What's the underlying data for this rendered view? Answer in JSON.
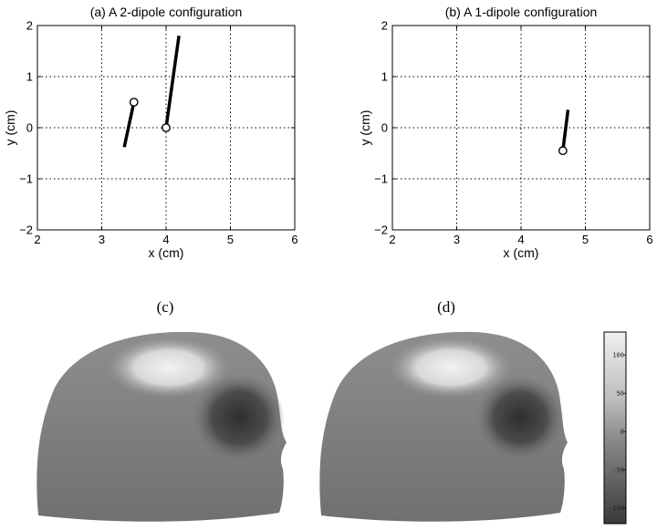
{
  "chart_data": [
    {
      "type": "scatter",
      "title": "(a) A 2-dipole configuration",
      "xlabel": "x (cm)",
      "ylabel": "y (cm)",
      "xlim": [
        2,
        6
      ],
      "ylim": [
        -2,
        2
      ],
      "xticks": [
        "2",
        "3",
        "4",
        "5",
        "6"
      ],
      "yticks": [
        "2",
        "1",
        "0",
        "−1",
        "−2"
      ],
      "grid": "dotted",
      "dipoles": [
        {
          "origin": [
            3.5,
            0.5
          ],
          "tip": [
            3.35,
            -0.38
          ]
        },
        {
          "origin": [
            4.0,
            0.0
          ],
          "tip": [
            4.2,
            1.8
          ]
        }
      ]
    },
    {
      "type": "scatter",
      "title": "(b) A 1-dipole configuration",
      "xlabel": "x (cm)",
      "ylabel": "y (cm)",
      "xlim": [
        2,
        6
      ],
      "ylim": [
        -2,
        2
      ],
      "xticks": [
        "2",
        "3",
        "4",
        "5",
        "6"
      ],
      "yticks": [
        "2",
        "1",
        "0",
        "−1",
        "−2"
      ],
      "grid": "dotted",
      "dipoles": [
        {
          "origin": [
            4.65,
            -0.45
          ],
          "tip": [
            4.73,
            0.35
          ]
        }
      ]
    },
    {
      "type": "heatmap",
      "panels": [
        "(c)",
        "(d)"
      ],
      "colorbar_ticks": [
        "100",
        "50",
        "0",
        "-50",
        "-100"
      ],
      "colorbar_range": [
        -120,
        130
      ]
    }
  ]
}
